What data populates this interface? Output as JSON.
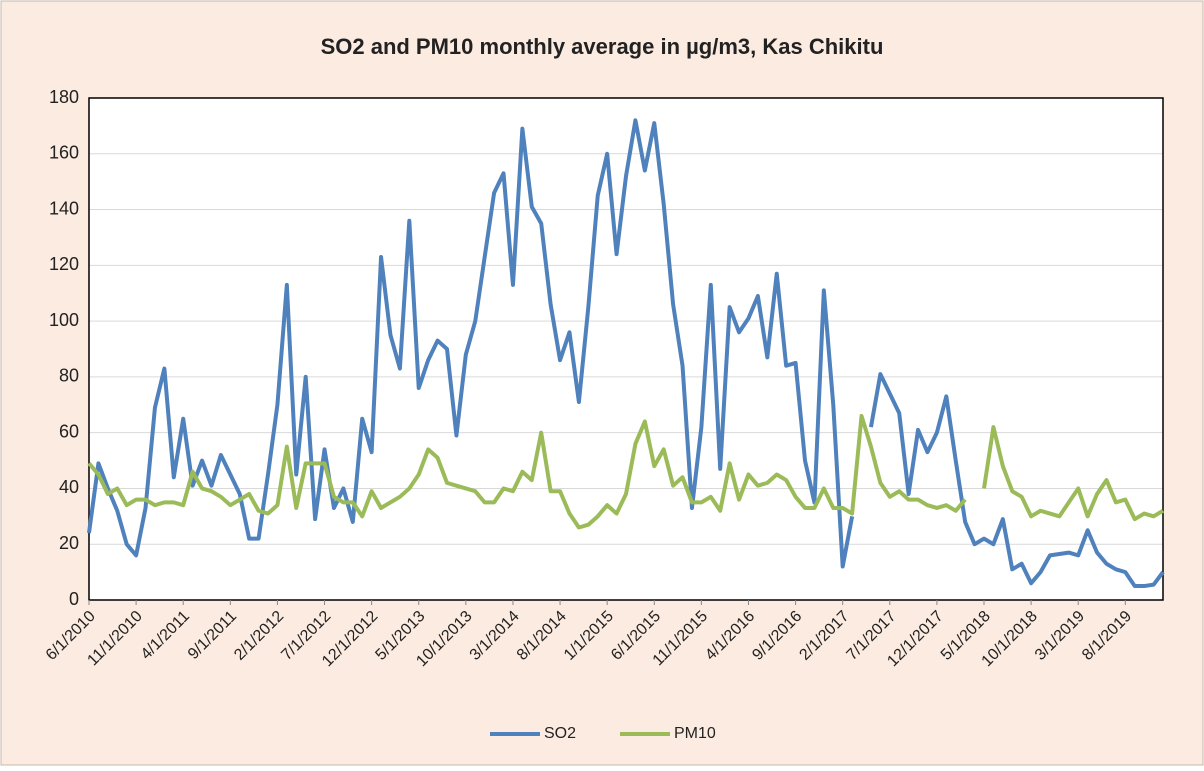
{
  "chart_data": {
    "type": "line",
    "title": "SO2 and PM10 monthly average in µg/m3,  Kas Chikitu",
    "categories": [
      "6/1/2010",
      null,
      null,
      null,
      null,
      "11/1/2010",
      null,
      null,
      null,
      null,
      "4/1/2011",
      null,
      null,
      null,
      null,
      "9/1/2011",
      null,
      null,
      null,
      null,
      "2/1/2012",
      null,
      null,
      null,
      null,
      "7/1/2012",
      null,
      null,
      null,
      null,
      "12/1/2012",
      null,
      null,
      null,
      null,
      "5/1/2013",
      null,
      null,
      null,
      null,
      "10/1/2013",
      null,
      null,
      null,
      null,
      "3/1/2014",
      null,
      null,
      null,
      null,
      "8/1/2014",
      null,
      null,
      null,
      null,
      "1/1/2015",
      null,
      null,
      null,
      null,
      "6/1/2015",
      null,
      null,
      null,
      null,
      "11/1/2015",
      null,
      null,
      null,
      null,
      "4/1/2016",
      null,
      null,
      null,
      null,
      "9/1/2016",
      null,
      null,
      null,
      null,
      "2/1/2017",
      null,
      null,
      null,
      null,
      "7/1/2017",
      null,
      null,
      null,
      null,
      "12/1/2017",
      null,
      null,
      null,
      null,
      "5/1/2018",
      null,
      null,
      null,
      null,
      "10/1/2018",
      null,
      null,
      null,
      null,
      "3/1/2019",
      null,
      null,
      null,
      null,
      "8/1/2019",
      null,
      null,
      null,
      null
    ],
    "series": [
      {
        "name": "SO2",
        "color": "#4f81bd",
        "values": [
          24,
          49,
          40,
          32,
          20,
          16,
          33,
          69,
          83,
          44,
          65,
          41,
          50,
          41,
          52,
          45,
          38,
          22,
          22,
          45,
          70,
          113,
          45,
          80,
          29,
          54,
          33,
          40,
          28,
          65,
          53,
          123,
          95,
          83,
          136,
          76,
          86,
          93,
          90,
          59,
          88,
          100,
          123,
          146,
          153,
          113,
          169,
          141,
          135,
          106,
          86,
          96,
          71,
          105,
          145,
          160,
          124,
          152,
          172,
          154,
          171,
          142,
          106,
          84,
          33,
          62,
          113,
          47,
          105,
          96,
          101,
          109,
          87,
          117,
          84,
          85,
          50,
          35,
          111,
          70,
          12,
          30,
          null,
          62,
          81,
          74,
          67,
          38,
          61,
          53,
          60,
          73,
          50,
          28,
          20,
          22,
          20,
          29,
          11,
          13,
          6,
          10,
          16,
          16.5,
          17,
          16,
          25,
          17,
          13,
          11,
          10,
          5,
          5,
          5.5,
          10
        ]
      },
      {
        "name": "PM10",
        "color": "#9bbb59",
        "values": [
          49,
          45,
          38,
          40,
          34,
          36,
          36,
          34,
          35,
          35,
          34,
          46,
          40,
          39,
          37,
          34,
          36,
          38,
          32,
          31,
          34,
          55,
          33,
          49,
          49,
          49,
          37,
          35,
          35,
          30,
          39,
          33,
          35,
          37,
          40,
          45,
          54,
          51,
          42,
          41,
          40,
          39,
          35,
          35,
          40,
          39,
          46,
          43,
          60,
          39,
          39,
          31,
          26,
          27,
          30,
          34,
          31,
          38,
          56,
          64,
          48,
          54,
          41,
          44,
          35,
          35,
          37,
          32,
          49,
          36,
          45,
          41,
          42,
          45,
          43,
          37,
          33,
          33,
          40,
          33,
          33,
          31,
          66,
          55,
          42,
          37,
          39,
          36,
          36,
          34,
          33,
          34,
          32,
          36,
          null,
          40,
          62,
          48,
          39,
          37,
          30,
          32,
          31,
          30,
          35,
          40,
          30,
          38,
          43,
          35,
          36,
          29,
          31,
          30,
          32
        ]
      }
    ],
    "ylim": [
      0,
      180
    ],
    "yticks": [
      0,
      20,
      40,
      60,
      80,
      100,
      120,
      140,
      160,
      180
    ],
    "grid": true,
    "legend": "bottom"
  }
}
